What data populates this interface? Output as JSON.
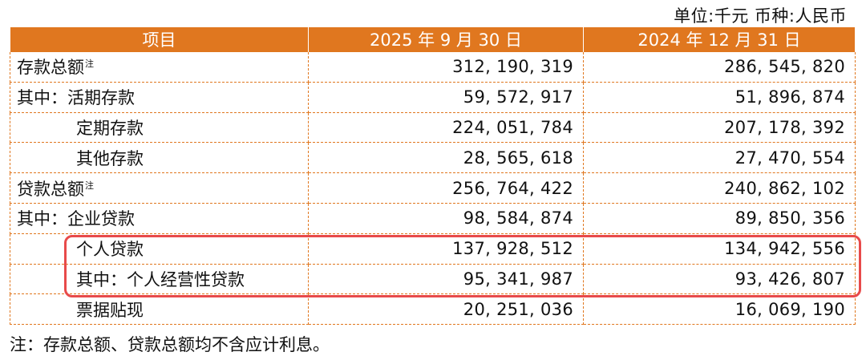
{
  "unit_line": "单位:千元  币种:人民币",
  "headers": [
    "项目",
    "2025 年 9 月 30 日",
    "2024 年 12 月 31 日"
  ],
  "rows": [
    {
      "label": "存款总额",
      "note": "注",
      "v2025": "312, 190, 319",
      "v2024": "286, 545, 820"
    },
    {
      "label": "其中：活期存款",
      "note": "",
      "v2025": "59, 572, 917",
      "v2024": "51, 896, 874"
    },
    {
      "label": "定期存款",
      "note": "",
      "v2025": "224, 051, 784",
      "v2024": "207, 178, 392"
    },
    {
      "label": "其他存款",
      "note": "",
      "v2025": "28, 565, 618",
      "v2024": "27, 470, 554"
    },
    {
      "label": "贷款总额",
      "note": "注",
      "v2025": "256, 764, 422",
      "v2024": "240, 862, 102"
    },
    {
      "label": "其中：企业贷款",
      "note": "",
      "v2025": "98, 584, 874",
      "v2024": "89, 850, 356"
    },
    {
      "label": "个人贷款",
      "note": "",
      "v2025": "137, 928, 512",
      "v2024": "134, 942, 556"
    },
    {
      "label": "其中：个人经营性贷款",
      "note": "",
      "v2025": "95, 341, 987",
      "v2024": "93, 426, 807"
    },
    {
      "label": "票据贴现",
      "note": "",
      "v2025": "20, 251, 036",
      "v2024": "16, 069, 190"
    }
  ],
  "footnote": "注：存款总额、贷款总额均不含应计利息。",
  "colors": {
    "header_bg": "#e0771f",
    "highlight": "#e84a4a",
    "border": "#e0771f"
  }
}
